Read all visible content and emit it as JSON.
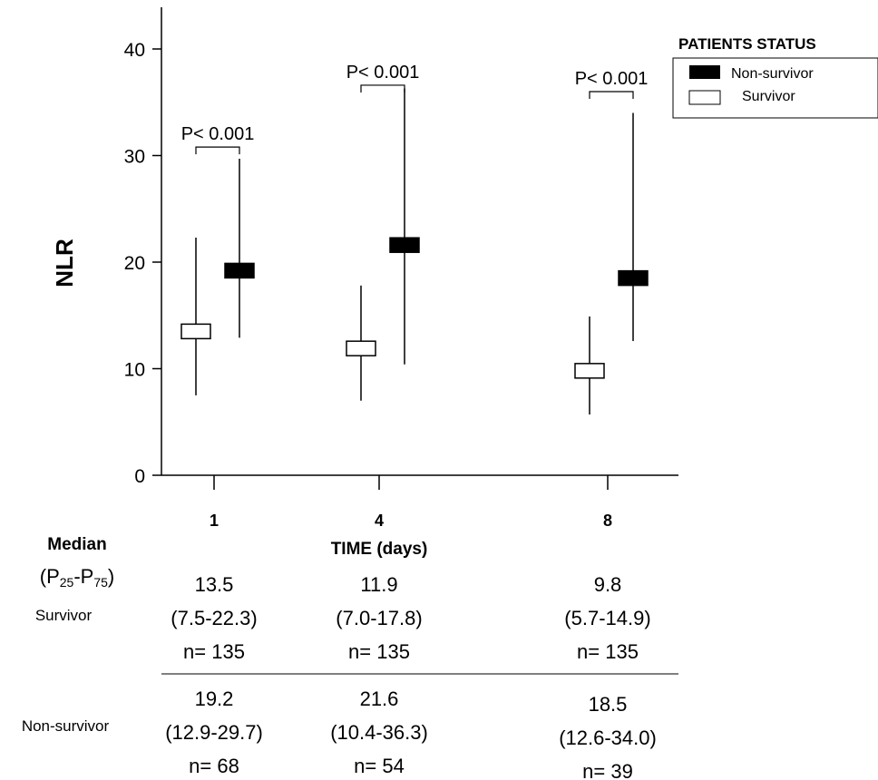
{
  "chart_data": {
    "type": "box",
    "ylabel": "NLR",
    "xlabel": "TIME (days)",
    "ylim": [
      0,
      40
    ],
    "yticks": [
      "0",
      "10",
      "20",
      "30",
      "40"
    ],
    "categories": [
      "1",
      "4",
      "8"
    ],
    "legend": {
      "title": "PATIENTS STATUS",
      "placement": "top-right",
      "entries": [
        "Non-survivor",
        "Survivor"
      ]
    },
    "series": [
      {
        "name": "Survivor",
        "fill": "#ffffff",
        "median": [
          13.5,
          11.9,
          9.8
        ],
        "low": [
          7.5,
          7.0,
          5.7
        ],
        "high": [
          22.3,
          17.8,
          14.9
        ],
        "n": [
          135,
          135,
          135
        ]
      },
      {
        "name": "Non-survivor",
        "fill": "#000000",
        "median": [
          19.2,
          21.6,
          18.5
        ],
        "low": [
          12.9,
          10.4,
          12.6
        ],
        "high": [
          29.7,
          36.3,
          34.0
        ],
        "n": [
          68,
          54,
          39
        ]
      }
    ],
    "annotations": [
      {
        "category": "1",
        "text": "P< 0.001",
        "y": 30.8
      },
      {
        "category": "4",
        "text": "P< 0.001",
        "y": 36.6
      },
      {
        "category": "8",
        "text": "P< 0.001",
        "y": 36.0
      }
    ]
  },
  "table": {
    "header_line1": "Median",
    "header_p": "P",
    "header_sub25": "25",
    "header_dash": "-P",
    "header_sub75": "75",
    "rows": [
      {
        "label": "Survivor",
        "cells": [
          {
            "median": "13.5",
            "range": "(7.5-22.3)",
            "n": "n= 135"
          },
          {
            "median": "11.9",
            "range": "(7.0-17.8)",
            "n": "n= 135"
          },
          {
            "median": "9.8",
            "range": "(5.7-14.9)",
            "n": "n= 135"
          }
        ]
      },
      {
        "label": "Non-survivor",
        "cells": [
          {
            "median": "19.2",
            "range": "(12.9-29.7)",
            "n": "n= 68"
          },
          {
            "median": "21.6",
            "range": "(10.4-36.3)",
            "n": "n= 54"
          },
          {
            "median": "18.5",
            "range": "(12.6-34.0)",
            "n": "n= 39"
          }
        ]
      }
    ]
  }
}
